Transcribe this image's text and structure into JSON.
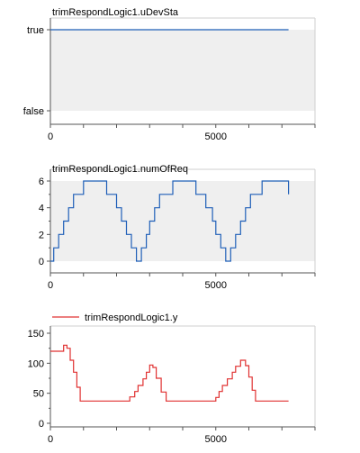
{
  "chart_data": [
    {
      "type": "line",
      "title": "trimRespondLogic1.uDevSta",
      "xlabel": "",
      "ylabel": "",
      "xlim": [
        0,
        8000
      ],
      "ylim": [
        0,
        1
      ],
      "x_tick_labels": [
        "0",
        "5000"
      ],
      "x_tick_values": [
        0,
        5000
      ],
      "y_tick_labels": [
        "true",
        "false"
      ],
      "y_tick_values": [
        1,
        0
      ],
      "grid": false,
      "step": true,
      "series": [
        {
          "name": "",
          "color": "#1f5fb8",
          "points": [
            [
              0,
              1
            ],
            [
              7200,
              1
            ]
          ]
        }
      ]
    },
    {
      "type": "line",
      "title": "trimRespondLogic1.numOfReq",
      "xlabel": "",
      "ylabel": "",
      "xlim": [
        0,
        8000
      ],
      "ylim": [
        0,
        6
      ],
      "x_tick_labels": [
        "0",
        "5000"
      ],
      "x_tick_values": [
        0,
        5000
      ],
      "y_tick_labels": [
        "6",
        "4",
        "2",
        "0"
      ],
      "y_tick_values": [
        6,
        4,
        2,
        0
      ],
      "grid": false,
      "step": true,
      "series": [
        {
          "name": "",
          "color": "#1f5fb8",
          "points": [
            [
              0,
              0
            ],
            [
              100,
              0
            ],
            [
              100,
              1
            ],
            [
              250,
              1
            ],
            [
              250,
              2
            ],
            [
              400,
              2
            ],
            [
              400,
              3
            ],
            [
              550,
              3
            ],
            [
              550,
              4
            ],
            [
              700,
              4
            ],
            [
              700,
              5
            ],
            [
              1000,
              5
            ],
            [
              1000,
              6
            ],
            [
              1700,
              6
            ],
            [
              1700,
              5
            ],
            [
              2000,
              5
            ],
            [
              2000,
              4
            ],
            [
              2150,
              4
            ],
            [
              2150,
              3
            ],
            [
              2300,
              3
            ],
            [
              2300,
              2
            ],
            [
              2450,
              2
            ],
            [
              2450,
              1
            ],
            [
              2600,
              1
            ],
            [
              2600,
              0
            ],
            [
              2750,
              0
            ],
            [
              2750,
              1
            ],
            [
              2900,
              1
            ],
            [
              2900,
              2
            ],
            [
              3000,
              2
            ],
            [
              3000,
              3
            ],
            [
              3150,
              3
            ],
            [
              3150,
              4
            ],
            [
              3300,
              4
            ],
            [
              3300,
              5
            ],
            [
              3700,
              5
            ],
            [
              3700,
              6
            ],
            [
              4400,
              6
            ],
            [
              4400,
              5
            ],
            [
              4700,
              5
            ],
            [
              4700,
              4
            ],
            [
              4900,
              4
            ],
            [
              4900,
              3
            ],
            [
              5000,
              3
            ],
            [
              5000,
              2
            ],
            [
              5150,
              2
            ],
            [
              5150,
              1
            ],
            [
              5300,
              1
            ],
            [
              5300,
              0
            ],
            [
              5450,
              0
            ],
            [
              5450,
              1
            ],
            [
              5600,
              1
            ],
            [
              5600,
              2
            ],
            [
              5750,
              2
            ],
            [
              5750,
              3
            ],
            [
              5900,
              3
            ],
            [
              5900,
              4
            ],
            [
              6050,
              4
            ],
            [
              6050,
              5
            ],
            [
              6400,
              5
            ],
            [
              6400,
              6
            ],
            [
              7200,
              6
            ],
            [
              7200,
              5
            ]
          ]
        }
      ]
    },
    {
      "type": "line",
      "title": "",
      "xlabel": "",
      "ylabel": "",
      "xlim": [
        0,
        8000
      ],
      "ylim": [
        0,
        150
      ],
      "x_tick_labels": [
        "0",
        "5000"
      ],
      "x_tick_values": [
        0,
        5000
      ],
      "y_tick_labels": [
        "150",
        "100",
        "50",
        "0"
      ],
      "y_tick_values": [
        150,
        100,
        50,
        0
      ],
      "grid": false,
      "step": true,
      "legend": {
        "position": "top-left"
      },
      "series": [
        {
          "name": "trimRespondLogic1.y",
          "color": "#e03030",
          "points": [
            [
              0,
              120
            ],
            [
              400,
              120
            ],
            [
              400,
              130
            ],
            [
              500,
              130
            ],
            [
              500,
              125
            ],
            [
              600,
              125
            ],
            [
              600,
              105
            ],
            [
              700,
              105
            ],
            [
              700,
              85
            ],
            [
              800,
              85
            ],
            [
              800,
              60
            ],
            [
              900,
              60
            ],
            [
              900,
              37
            ],
            [
              2400,
              37
            ],
            [
              2400,
              44
            ],
            [
              2550,
              44
            ],
            [
              2550,
              53
            ],
            [
              2650,
              53
            ],
            [
              2650,
              63
            ],
            [
              2800,
              63
            ],
            [
              2800,
              74
            ],
            [
              2900,
              74
            ],
            [
              2900,
              85
            ],
            [
              3000,
              85
            ],
            [
              3000,
              97
            ],
            [
              3100,
              97
            ],
            [
              3100,
              93
            ],
            [
              3200,
              93
            ],
            [
              3200,
              75
            ],
            [
              3350,
              75
            ],
            [
              3350,
              52
            ],
            [
              3500,
              52
            ],
            [
              3500,
              37
            ],
            [
              5000,
              37
            ],
            [
              5000,
              43
            ],
            [
              5100,
              43
            ],
            [
              5100,
              53
            ],
            [
              5200,
              53
            ],
            [
              5200,
              63
            ],
            [
              5350,
              63
            ],
            [
              5350,
              74
            ],
            [
              5500,
              74
            ],
            [
              5500,
              85
            ],
            [
              5600,
              85
            ],
            [
              5600,
              95
            ],
            [
              5750,
              95
            ],
            [
              5750,
              105
            ],
            [
              5900,
              105
            ],
            [
              5900,
              96
            ],
            [
              6000,
              96
            ],
            [
              6000,
              77
            ],
            [
              6100,
              77
            ],
            [
              6100,
              55
            ],
            [
              6200,
              55
            ],
            [
              6200,
              37
            ],
            [
              7200,
              37
            ]
          ]
        }
      ]
    }
  ]
}
